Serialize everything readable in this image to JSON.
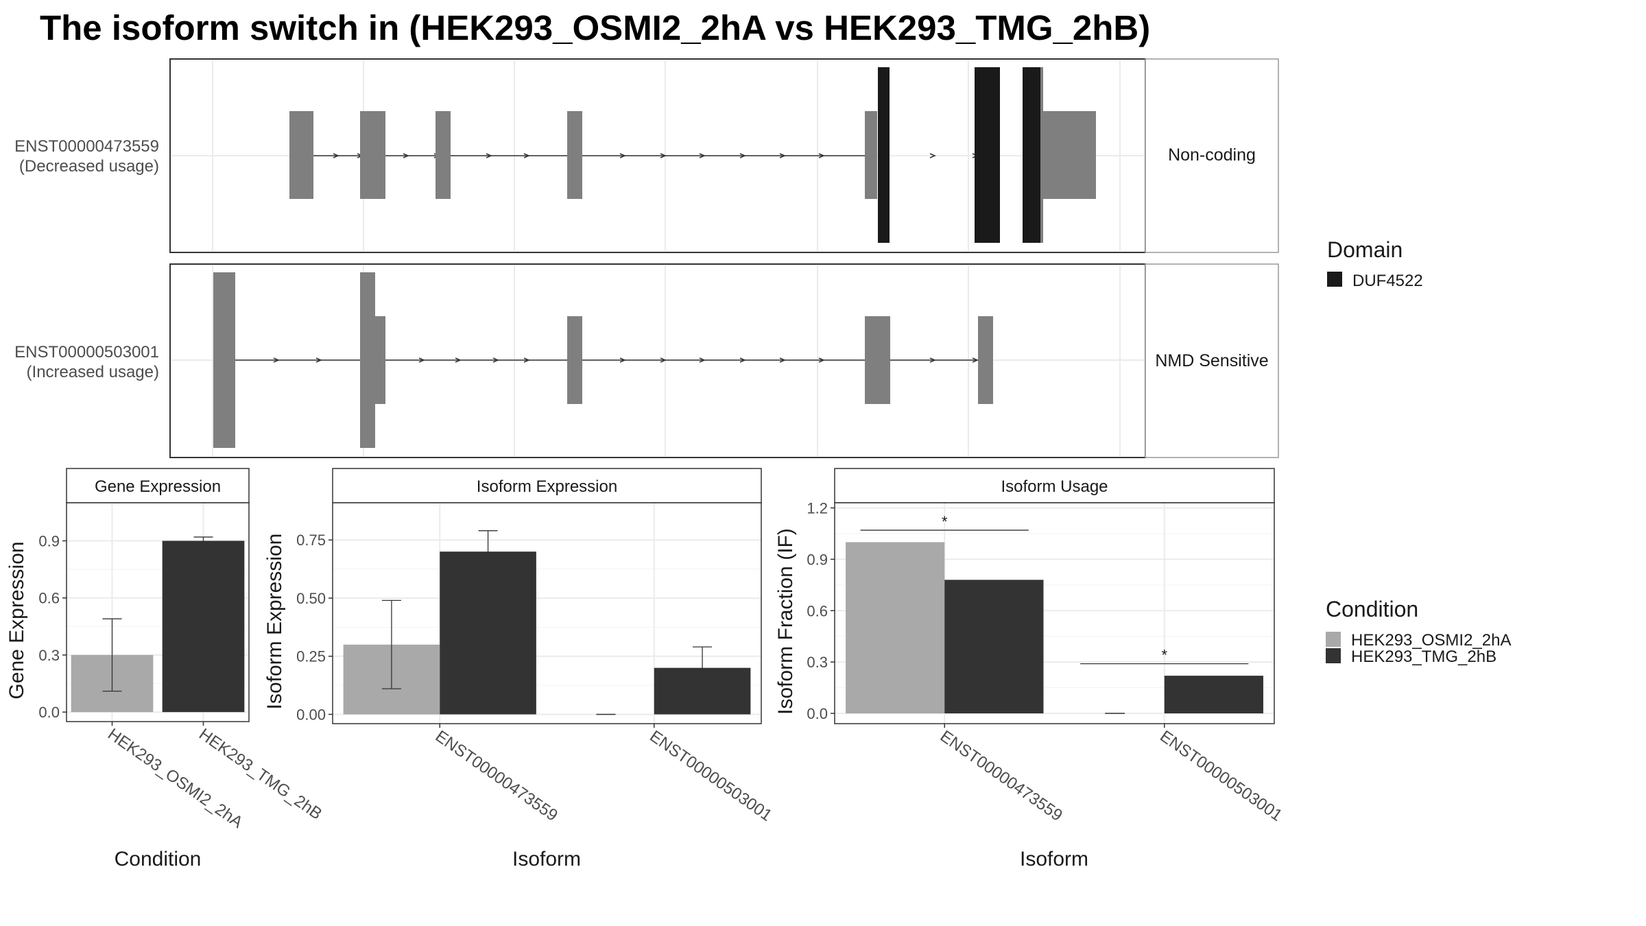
{
  "title": "The isoform switch in  (HEK293_OSMI2_2hA vs HEK293_TMG_2hB)",
  "colors": {
    "condA": "#a9a9a9",
    "condB": "#333333",
    "domain": "#1a1a1a",
    "exon": "#7f7f7f",
    "grid": "#ebebeb"
  },
  "isoforms": [
    {
      "id": "ENST00000473559",
      "usage_label": "(Decreased usage)",
      "category": "Non-coding"
    },
    {
      "id": "ENST00000503001",
      "usage_label": "(Increased usage)",
      "category": "NMD Sensitive"
    }
  ],
  "domain_legend": {
    "title": "Domain",
    "entries": [
      "DUF4522"
    ]
  },
  "condition_legend": {
    "title": "Condition",
    "entries": [
      "HEK293_OSMI2_2hA",
      "HEK293_TMG_2hB"
    ]
  },
  "chart_data": [
    {
      "type": "bar",
      "title": "Gene Expression",
      "xlabel": "Condition",
      "ylabel": "Gene Expression",
      "categories": [
        "HEK293_OSMI2_2hA",
        "HEK293_TMG_2hB"
      ],
      "values": [
        0.3,
        0.9
      ],
      "error_low": [
        0.11,
        0.89
      ],
      "error_high": [
        0.49,
        0.92
      ],
      "ylim": [
        -0.05,
        1.1
      ],
      "yticks": [
        "0.0",
        "0.3",
        "0.6",
        "0.9"
      ]
    },
    {
      "type": "bar",
      "title": "Isoform Expression",
      "xlabel": "Isoform",
      "ylabel": "Isoform Expression",
      "categories": [
        "ENST00000473559",
        "ENST00000503001"
      ],
      "series": [
        {
          "name": "HEK293_OSMI2_2hA",
          "values": [
            0.3,
            0.0
          ],
          "error_low": [
            0.11,
            null
          ],
          "error_high": [
            0.49,
            null
          ]
        },
        {
          "name": "HEK293_TMG_2hB",
          "values": [
            0.7,
            0.2
          ],
          "error_low": [
            0.62,
            0.12
          ],
          "error_high": [
            0.79,
            0.29
          ]
        }
      ],
      "ylim": [
        -0.04,
        0.91
      ],
      "yticks": [
        "0.00",
        "0.25",
        "0.50",
        "0.75"
      ]
    },
    {
      "type": "bar",
      "title": "Isoform Usage",
      "xlabel": "Isoform",
      "ylabel": "Isoform Fraction (IF)",
      "categories": [
        "ENST00000473559",
        "ENST00000503001"
      ],
      "series": [
        {
          "name": "HEK293_OSMI2_2hA",
          "values": [
            1.0,
            0.0
          ]
        },
        {
          "name": "HEK293_TMG_2hB",
          "values": [
            0.78,
            0.22
          ]
        }
      ],
      "significance": [
        "*",
        "*"
      ],
      "ylim": [
        -0.06,
        1.23
      ],
      "yticks": [
        "0.0",
        "0.3",
        "0.6",
        "0.9",
        "1.2"
      ]
    }
  ]
}
